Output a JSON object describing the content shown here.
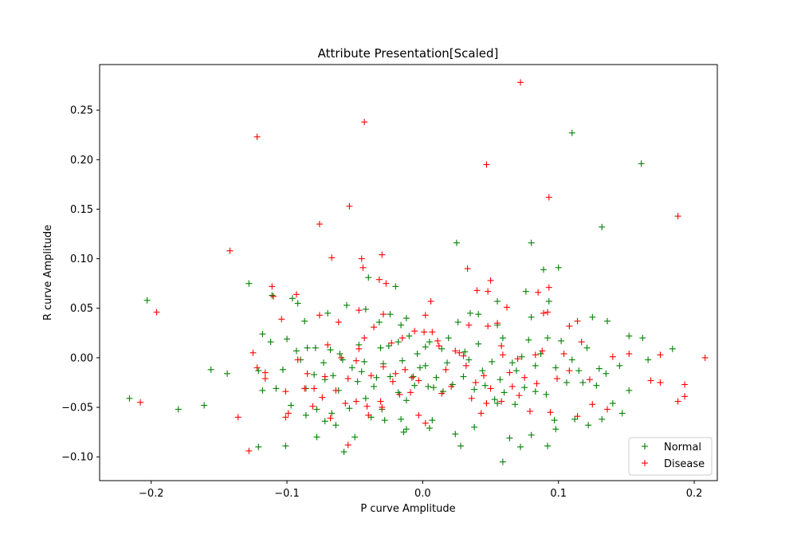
{
  "chart_data": {
    "type": "scatter",
    "title": "Attribute Presentation[Scaled]",
    "xlabel": "P curve Amplitude",
    "ylabel": "R curve Amplitude",
    "xlim": [
      -0.238,
      0.217
    ],
    "ylim": [
      -0.124,
      0.296
    ],
    "x_ticks": [
      -0.2,
      -0.1,
      0.0,
      0.1,
      0.2
    ],
    "x_tick_labels": [
      "−0.2",
      "−0.1",
      "0.0",
      "0.1",
      "0.2"
    ],
    "y_ticks": [
      -0.1,
      -0.05,
      0.0,
      0.05,
      0.1,
      0.15,
      0.2,
      0.25
    ],
    "y_tick_labels": [
      "−0.10",
      "−0.05",
      "0.00",
      "0.05",
      "0.10",
      "0.15",
      "0.20",
      "0.25"
    ],
    "grid": false,
    "legend": {
      "placement": "lower-right"
    },
    "marker": "+",
    "series": [
      {
        "name": "Normal",
        "color": "#008000",
        "points": [
          [
            0.11,
            0.227
          ],
          [
            0.161,
            0.196
          ],
          [
            0.132,
            0.132
          ],
          [
            0.08,
            0.116
          ],
          [
            0.025,
            0.116
          ],
          [
            0.1,
            0.091
          ],
          [
            0.089,
            0.089
          ],
          [
            -0.04,
            0.081
          ],
          [
            0.076,
            0.067
          ],
          [
            -0.128,
            0.075
          ],
          [
            -0.02,
            0.072
          ],
          [
            0.093,
            0.057
          ],
          [
            0.055,
            0.057
          ],
          [
            -0.203,
            0.058
          ],
          [
            -0.111,
            0.063
          ],
          [
            -0.096,
            0.06
          ],
          [
            -0.092,
            0.055
          ],
          [
            -0.056,
            0.053
          ],
          [
            -0.042,
            0.049
          ],
          [
            0.035,
            0.045
          ],
          [
            0.041,
            0.044
          ],
          [
            0.08,
            0.041
          ],
          [
            0.125,
            0.041
          ],
          [
            0.136,
            0.037
          ],
          [
            -0.07,
            0.045
          ],
          [
            -0.087,
            0.037
          ],
          [
            -0.024,
            0.044
          ],
          [
            -0.032,
            0.036
          ],
          [
            -0.012,
            0.04
          ],
          [
            0.026,
            0.036
          ],
          [
            0.055,
            0.033
          ],
          [
            -0.118,
            0.024
          ],
          [
            -0.112,
            0.016
          ],
          [
            -0.1,
            0.019
          ],
          [
            -0.085,
            0.01
          ],
          [
            -0.079,
            0.01
          ],
          [
            -0.068,
            0.008
          ],
          [
            -0.047,
            0.013
          ],
          [
            -0.031,
            0.01
          ],
          [
            -0.018,
            0.016
          ],
          [
            -0.01,
            0.022
          ],
          [
            0.005,
            0.016
          ],
          [
            0.019,
            0.02
          ],
          [
            0.041,
            0.014
          ],
          [
            0.059,
            0.02
          ],
          [
            0.078,
            0.018
          ],
          [
            0.092,
            0.02
          ],
          [
            0.102,
            0.017
          ],
          [
            0.121,
            0.01
          ],
          [
            0.152,
            0.022
          ],
          [
            0.162,
            0.02
          ],
          [
            0.184,
            0.009
          ],
          [
            0.166,
            -0.002
          ],
          [
            0.145,
            -0.008
          ],
          [
            0.13,
            -0.011
          ],
          [
            0.115,
            -0.013
          ],
          [
            0.098,
            -0.01
          ],
          [
            0.083,
            -0.008
          ],
          [
            0.066,
            -0.005
          ],
          [
            0.051,
            -0.004
          ],
          [
            0.034,
            -0.002
          ],
          [
            0.018,
            -0.005
          ],
          [
            0.002,
            -0.008
          ],
          [
            -0.015,
            -0.003
          ],
          [
            -0.029,
            -0.006
          ],
          [
            -0.043,
            -0.004
          ],
          [
            -0.059,
            -0.002
          ],
          [
            -0.073,
            -0.005
          ],
          [
            -0.09,
            -0.002
          ],
          [
            -0.103,
            -0.012
          ],
          [
            -0.121,
            -0.013
          ],
          [
            -0.144,
            -0.016
          ],
          [
            -0.156,
            -0.012
          ],
          [
            -0.216,
            -0.041
          ],
          [
            -0.18,
            -0.052
          ],
          [
            -0.161,
            -0.048
          ],
          [
            -0.118,
            -0.033
          ],
          [
            -0.108,
            -0.031
          ],
          [
            -0.097,
            -0.048
          ],
          [
            -0.086,
            -0.031
          ],
          [
            -0.078,
            -0.052
          ],
          [
            -0.072,
            -0.022
          ],
          [
            -0.067,
            -0.056
          ],
          [
            -0.062,
            -0.033
          ],
          [
            -0.054,
            -0.051
          ],
          [
            -0.048,
            -0.024
          ],
          [
            -0.042,
            -0.041
          ],
          [
            -0.036,
            -0.029
          ],
          [
            -0.03,
            -0.052
          ],
          [
            -0.024,
            -0.019
          ],
          [
            -0.018,
            -0.035
          ],
          [
            -0.012,
            -0.043
          ],
          [
            -0.006,
            -0.028
          ],
          [
            0.004,
            -0.029
          ],
          [
            0.01,
            -0.02
          ],
          [
            0.022,
            -0.027
          ],
          [
            0.03,
            -0.019
          ],
          [
            0.038,
            -0.032
          ],
          [
            0.046,
            -0.028
          ],
          [
            0.053,
            -0.042
          ],
          [
            0.06,
            -0.035
          ],
          [
            0.068,
            -0.047
          ],
          [
            0.075,
            -0.03
          ],
          [
            0.083,
            -0.034
          ],
          [
            0.091,
            -0.037
          ],
          [
            0.097,
            -0.063
          ],
          [
            0.106,
            -0.025
          ],
          [
            0.118,
            -0.025
          ],
          [
            0.128,
            -0.028
          ],
          [
            0.135,
            -0.016
          ],
          [
            0.147,
            -0.056
          ],
          [
            0.152,
            -0.033
          ],
          [
            0.132,
            -0.062
          ],
          [
            0.122,
            -0.068
          ],
          [
            0.112,
            -0.062
          ],
          [
            0.098,
            -0.072
          ],
          [
            0.092,
            -0.089
          ],
          [
            0.08,
            -0.078
          ],
          [
            0.072,
            -0.09
          ],
          [
            0.064,
            -0.081
          ],
          [
            0.059,
            -0.105
          ],
          [
            0.055,
            -0.046
          ],
          [
            0.038,
            -0.07
          ],
          [
            0.028,
            -0.089
          ],
          [
            0.024,
            -0.077
          ],
          [
            0.007,
            -0.063
          ],
          [
            0.005,
            -0.071
          ],
          [
            -0.012,
            -0.072
          ],
          [
            -0.016,
            -0.062
          ],
          [
            -0.028,
            -0.063
          ],
          [
            -0.038,
            -0.06
          ],
          [
            -0.05,
            -0.08
          ],
          [
            -0.058,
            -0.095
          ],
          [
            -0.064,
            -0.068
          ],
          [
            -0.072,
            -0.064
          ],
          [
            -0.078,
            -0.08
          ],
          [
            -0.086,
            -0.058
          ],
          [
            -0.101,
            -0.089
          ],
          [
            -0.121,
            -0.09
          ],
          [
            -0.014,
            -0.075
          ],
          [
            0.008,
            -0.03
          ],
          [
            0.002,
            0.011
          ],
          [
            -0.004,
            0.004
          ],
          [
            0.014,
            0.009
          ],
          [
            0.044,
            -0.013
          ],
          [
            0.057,
            -0.022
          ],
          [
            -0.007,
            -0.019
          ],
          [
            -0.002,
            -0.01
          ],
          [
            -0.016,
            0.033
          ],
          [
            -0.025,
            0.012
          ],
          [
            -0.052,
            -0.01
          ],
          [
            -0.045,
            -0.014
          ],
          [
            -0.066,
            -0.018
          ],
          [
            0.031,
            0.006
          ],
          [
            0.073,
            0.001
          ],
          [
            0.087,
            0.004
          ],
          [
            0.069,
            -0.013
          ],
          [
            -0.08,
            -0.017
          ],
          [
            -0.093,
            0.007
          ],
          [
            0.015,
            -0.034
          ],
          [
            0.11,
            -0.002
          ],
          [
            0.14,
            -0.046
          ],
          [
            -0.034,
            -0.02
          ],
          [
            -0.061,
            0.004
          ]
        ]
      },
      {
        "name": "Disease",
        "color": "#ff0000",
        "points": [
          [
            0.072,
            0.278
          ],
          [
            -0.043,
            0.238
          ],
          [
            -0.122,
            0.223
          ],
          [
            0.047,
            0.195
          ],
          [
            0.093,
            0.162
          ],
          [
            -0.054,
            0.153
          ],
          [
            0.188,
            0.143
          ],
          [
            -0.076,
            0.135
          ],
          [
            -0.142,
            0.108
          ],
          [
            -0.03,
            0.104
          ],
          [
            -0.067,
            0.101
          ],
          [
            -0.045,
            0.1
          ],
          [
            0.033,
            0.09
          ],
          [
            -0.044,
            0.091
          ],
          [
            -0.032,
            0.079
          ],
          [
            -0.027,
            0.075
          ],
          [
            0.05,
            0.078
          ],
          [
            0.093,
            0.071
          ],
          [
            -0.111,
            0.072
          ],
          [
            -0.11,
            0.062
          ],
          [
            -0.093,
            0.064
          ],
          [
            0.04,
            0.068
          ],
          [
            0.048,
            0.067
          ],
          [
            0.085,
            0.066
          ],
          [
            0.006,
            0.057
          ],
          [
            0.062,
            0.051
          ],
          [
            -0.196,
            0.046
          ],
          [
            -0.047,
            0.048
          ],
          [
            0.092,
            0.046
          ],
          [
            0.089,
            0.045
          ],
          [
            -0.076,
            0.043
          ],
          [
            -0.029,
            0.044
          ],
          [
            -0.104,
            0.039
          ],
          [
            -0.062,
            0.036
          ],
          [
            0.002,
            0.043
          ],
          [
            0.034,
            0.033
          ],
          [
            0.048,
            0.032
          ],
          [
            0.055,
            0.035
          ],
          [
            0.108,
            0.032
          ],
          [
            0.114,
            0.037
          ],
          [
            -0.036,
            0.031
          ],
          [
            -0.006,
            0.027
          ],
          [
            0.001,
            0.026
          ],
          [
            -0.043,
            0.02
          ],
          [
            -0.023,
            0.015
          ],
          [
            0.012,
            0.012
          ],
          [
            0.024,
            0.007
          ],
          [
            0.058,
            0.012
          ],
          [
            0.07,
            -0.001
          ],
          [
            0.088,
            0.007
          ],
          [
            0.104,
            0.004
          ],
          [
            0.117,
            0.016
          ],
          [
            0.14,
            0.001
          ],
          [
            0.152,
            0.004
          ],
          [
            0.175,
            0.003
          ],
          [
            -0.125,
            0.005
          ],
          [
            -0.092,
            -0.002
          ],
          [
            -0.06,
            0.0
          ],
          [
            -0.029,
            -0.009
          ],
          [
            -0.008,
            -0.02
          ],
          [
            -0.122,
            -0.01
          ],
          [
            -0.116,
            -0.015
          ],
          [
            -0.085,
            -0.016
          ],
          [
            -0.072,
            -0.019
          ],
          [
            -0.055,
            -0.021
          ],
          [
            -0.038,
            -0.018
          ],
          [
            -0.02,
            -0.016
          ],
          [
            -0.003,
            -0.023
          ],
          [
            0.021,
            -0.029
          ],
          [
            0.039,
            -0.025
          ],
          [
            0.05,
            -0.031
          ],
          [
            0.066,
            -0.029
          ],
          [
            0.084,
            -0.026
          ],
          [
            0.099,
            -0.021
          ],
          [
            0.123,
            -0.022
          ],
          [
            0.168,
            -0.023
          ],
          [
            0.175,
            -0.025
          ],
          [
            0.193,
            -0.027
          ],
          [
            0.193,
            -0.039
          ],
          [
            0.188,
            -0.044
          ],
          [
            0.208,
            0.0
          ],
          [
            -0.208,
            -0.045
          ],
          [
            -0.136,
            -0.06
          ],
          [
            -0.116,
            -0.021
          ],
          [
            -0.101,
            -0.034
          ],
          [
            -0.087,
            -0.031
          ],
          [
            -0.074,
            -0.04
          ],
          [
            -0.064,
            -0.033
          ],
          [
            -0.057,
            -0.046
          ],
          [
            -0.049,
            -0.044
          ],
          [
            -0.041,
            -0.049
          ],
          [
            -0.031,
            -0.044
          ],
          [
            -0.017,
            -0.037
          ],
          [
            -0.009,
            -0.035
          ],
          [
            -0.003,
            -0.058
          ],
          [
            0.014,
            -0.036
          ],
          [
            0.036,
            -0.041
          ],
          [
            0.047,
            -0.046
          ],
          [
            0.058,
            -0.044
          ],
          [
            0.071,
            -0.038
          ],
          [
            0.079,
            -0.054
          ],
          [
            0.094,
            -0.055
          ],
          [
            0.114,
            -0.059
          ],
          [
            0.125,
            -0.047
          ],
          [
            0.136,
            -0.052
          ],
          [
            -0.128,
            -0.094
          ],
          [
            -0.099,
            -0.056
          ],
          [
            -0.081,
            -0.049
          ],
          [
            -0.068,
            -0.061
          ],
          [
            -0.055,
            -0.088
          ],
          [
            -0.04,
            -0.058
          ],
          [
            -0.03,
            -0.05
          ],
          [
            0.002,
            -0.066
          ],
          [
            0.043,
            -0.056
          ],
          [
            0.007,
            0.026
          ],
          [
            -0.015,
            0.02
          ],
          [
            0.027,
            0.005
          ],
          [
            0.032,
            -0.008
          ],
          [
            -0.049,
            -0.003
          ],
          [
            -0.07,
            0.013
          ],
          [
            0.045,
            -0.018
          ],
          [
            0.059,
            0.003
          ],
          [
            0.083,
            0.003
          ],
          [
            -0.013,
            -0.012
          ],
          [
            0.017,
            -0.012
          ],
          [
            0.064,
            -0.015
          ],
          [
            -0.047,
            0.009
          ],
          [
            -0.022,
            -0.024
          ],
          [
            0.03,
            0.002
          ],
          [
            -0.08,
            -0.031
          ],
          [
            -0.101,
            -0.06
          ],
          [
            0.108,
            -0.013
          ],
          [
            0.075,
            -0.02
          ],
          [
            0.011,
            0.017
          ]
        ]
      }
    ]
  }
}
